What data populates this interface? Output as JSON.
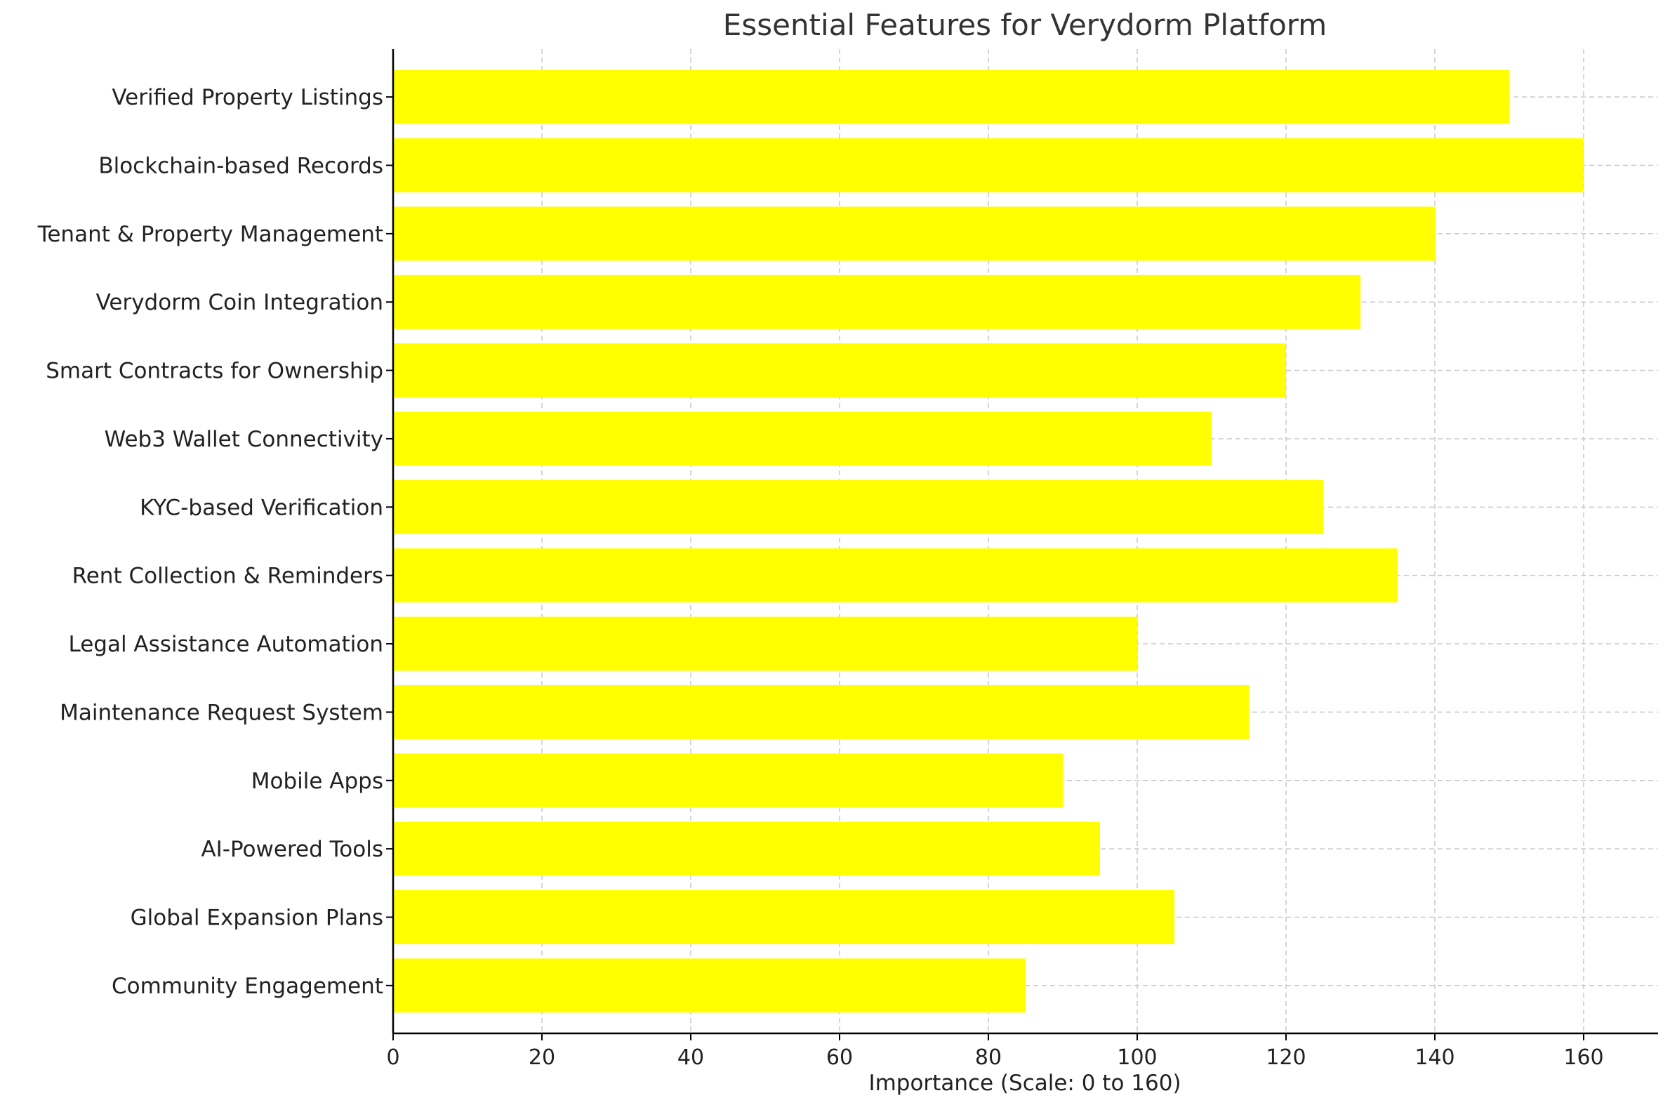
{
  "chart_data": {
    "type": "bar",
    "orientation": "horizontal",
    "title": "Essential Features for Verydorm Platform",
    "xlabel": "Importance (Scale: 0 to 160)",
    "ylabel": "",
    "categories": [
      "Verified Property Listings",
      "Blockchain-based Records",
      "Tenant & Property Management",
      "Verydorm Coin Integration",
      "Smart Contracts for Ownership",
      "Web3 Wallet Connectivity",
      "KYC-based Verification",
      "Rent Collection & Reminders",
      "Legal Assistance Automation",
      "Maintenance Request System",
      "Mobile Apps",
      "AI-Powered Tools",
      "Global Expansion Plans",
      "Community Engagement"
    ],
    "values": [
      150,
      160,
      140,
      130,
      120,
      110,
      125,
      135,
      100,
      115,
      90,
      95,
      105,
      85
    ],
    "xlim": [
      0,
      170
    ],
    "xticks": [
      0,
      20,
      40,
      60,
      80,
      100,
      120,
      140,
      160
    ],
    "bar_color": "#ffff00",
    "grid": true,
    "grid_style": "dashed",
    "legend": "none"
  }
}
